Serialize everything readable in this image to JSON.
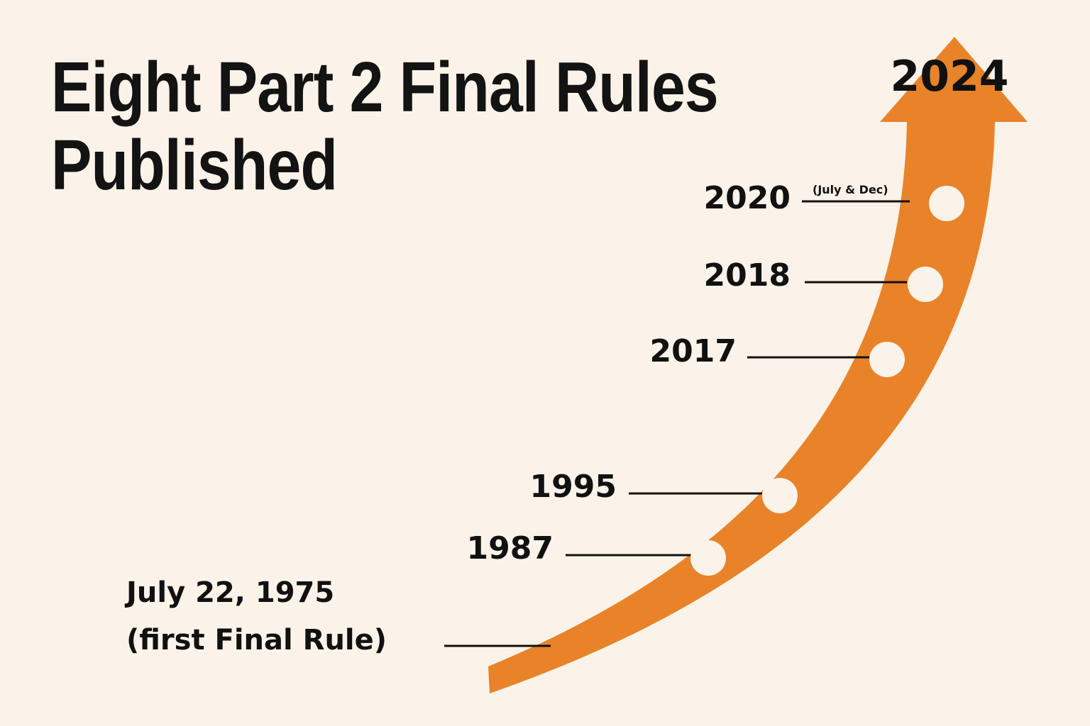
{
  "title": {
    "line1": "Eight Part 2 Final Rules",
    "line2": "Published"
  },
  "colors": {
    "background": "#fbf3e9",
    "arrow": "#e8832a",
    "text": "#111111",
    "milestone": "#fbf3e9"
  },
  "timeline": {
    "end": "2024",
    "milestones": [
      {
        "year": "2020",
        "note": "(July & Dec)"
      },
      {
        "year": "2018"
      },
      {
        "year": "2017"
      },
      {
        "year": "1995"
      },
      {
        "year": "1987"
      }
    ],
    "start": {
      "line1": "July 22, 1975",
      "line2": "(first Final Rule)"
    }
  }
}
